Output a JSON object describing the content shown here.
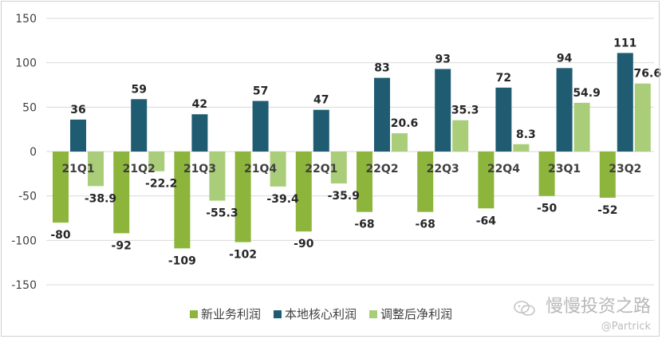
{
  "chart_data": {
    "type": "bar",
    "title": "",
    "xlabel": "",
    "ylabel": "",
    "ylim": [
      -150,
      150
    ],
    "yticks": [
      -150,
      -100,
      -50,
      0,
      50,
      100,
      150
    ],
    "categories": [
      "21Q1",
      "21Q2",
      "21Q3",
      "21Q4",
      "22Q1",
      "22Q2",
      "22Q3",
      "22Q4",
      "23Q1",
      "23Q2"
    ],
    "series": [
      {
        "name": "新业务利润",
        "color": "#8db53c",
        "values": [
          -80,
          -92,
          -109,
          -102,
          -90,
          -68,
          -68,
          -64,
          -50,
          -52
        ]
      },
      {
        "name": "本地核心利润",
        "color": "#1f5c72",
        "values": [
          36,
          59,
          42,
          57,
          47,
          83,
          93,
          72,
          94,
          111
        ]
      },
      {
        "name": "调整后净利润",
        "color": "#aacd7a",
        "values": [
          -38.9,
          -22.2,
          -55.3,
          -39.4,
          -35.9,
          20.6,
          35.3,
          8.3,
          54.9,
          76.6
        ]
      }
    ],
    "legend": "bottom",
    "grid": true
  },
  "watermark": {
    "main": "慢慢投资之路",
    "sub": "@Partrick",
    "icon": "wechat-icon"
  }
}
